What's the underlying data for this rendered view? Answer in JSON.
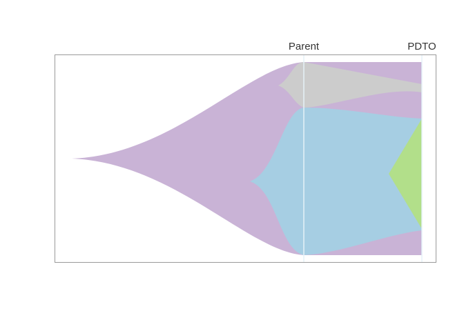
{
  "timepoints": [
    {
      "label": "Parent"
    },
    {
      "label": "PDTO"
    }
  ],
  "colors": {
    "founder_clone": "#c9b3d6",
    "clone_grey": "#cccccc",
    "clone_blue": "#a6cee3",
    "clone_green": "#b2df8a",
    "frame": "#999999",
    "timepoint_line": "#e6f2f8"
  }
}
